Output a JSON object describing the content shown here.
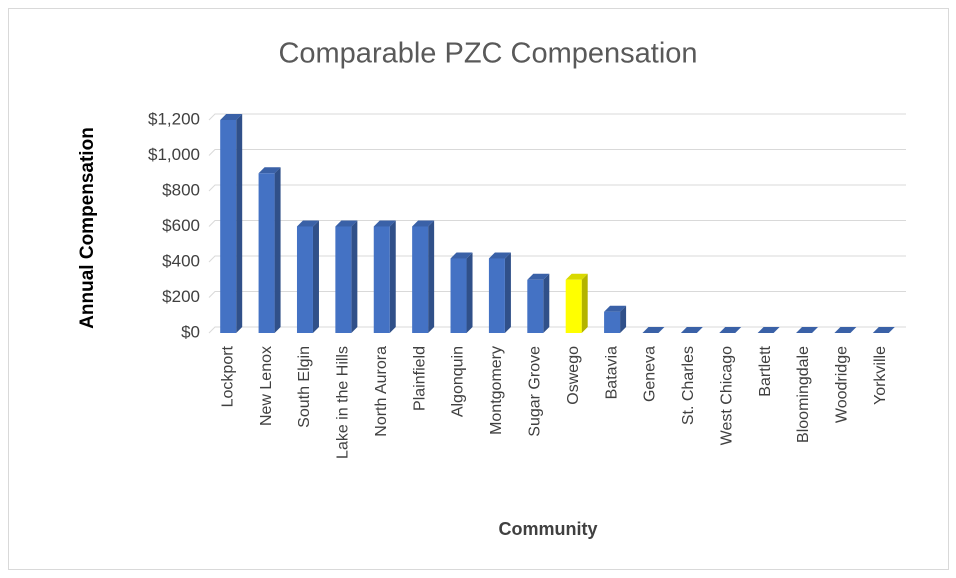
{
  "chart_data": {
    "type": "bar",
    "title": "Comparable PZC Compensation",
    "x_label": "Community",
    "y_label": "Annual Compensation",
    "categories": [
      "Lockport",
      "New Lenox",
      "South Elgin",
      "Lake in the Hills",
      "North Aurora",
      "Plainfield",
      "Algonquin",
      "Montgomery",
      "Sugar Grove",
      "Oswego",
      "Batavia",
      "Geneva",
      "St. Charles",
      "West Chicago",
      "Bartlett",
      "Bloomingdale",
      "Woodridge",
      "Yorkville"
    ],
    "values": [
      1200,
      900,
      600,
      600,
      600,
      600,
      420,
      420,
      300,
      300,
      120,
      0,
      0,
      0,
      0,
      0,
      0,
      0
    ],
    "colors": [
      "#4472c4",
      "#4472c4",
      "#4472c4",
      "#4472c4",
      "#4472c4",
      "#4472c4",
      "#4472c4",
      "#4472c4",
      "#4472c4",
      "#ffff00",
      "#4472c4",
      "#4472c4",
      "#4472c4",
      "#4472c4",
      "#4472c4",
      "#4472c4",
      "#4472c4",
      "#4472c4"
    ],
    "ylim": [
      0,
      1200
    ],
    "yticks": [
      {
        "value": 0,
        "label": "$0"
      },
      {
        "value": 200,
        "label": "$200"
      },
      {
        "value": 400,
        "label": "$400"
      },
      {
        "value": 600,
        "label": "$600"
      },
      {
        "value": 800,
        "label": "$800"
      },
      {
        "value": 1000,
        "label": "$1,000"
      },
      {
        "value": 1200,
        "label": "$1,200"
      }
    ],
    "grid": true
  }
}
